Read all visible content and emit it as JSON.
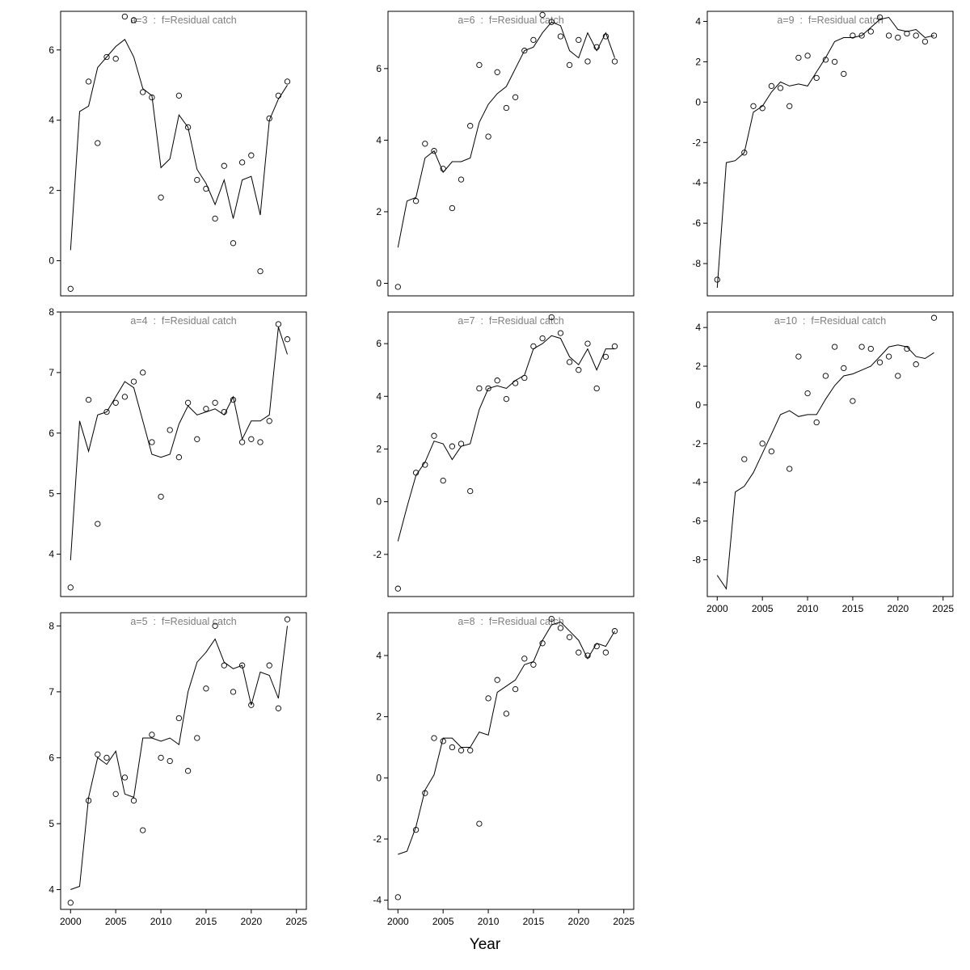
{
  "figure": {
    "xlabel": "Year",
    "colors": {
      "background": "#ffffff",
      "data": "#000000",
      "panel_title": "#7e7e7e"
    }
  },
  "chart_data": [
    {
      "type": "scatter",
      "title": "a=3  :  f=Residual catch",
      "xlim": [
        1998.9,
        2026.1
      ],
      "ylim": [
        -1.0,
        7.1
      ],
      "xticks": [
        2000,
        2005,
        2010,
        2015,
        2020,
        2025
      ],
      "yticks": [
        0,
        2,
        4,
        6
      ],
      "show_x_tick_labels": false,
      "points": [
        [
          2000,
          -0.8
        ],
        [
          2002,
          5.1
        ],
        [
          2003,
          3.35
        ],
        [
          2004,
          5.8
        ],
        [
          2005,
          5.75
        ],
        [
          2006,
          6.95
        ],
        [
          2007,
          6.85
        ],
        [
          2008,
          4.8
        ],
        [
          2009,
          4.65
        ],
        [
          2010,
          1.8
        ],
        [
          2012,
          4.7
        ],
        [
          2013,
          3.8
        ],
        [
          2014,
          2.3
        ],
        [
          2015,
          2.05
        ],
        [
          2016,
          1.2
        ],
        [
          2017,
          2.7
        ],
        [
          2018,
          0.5
        ],
        [
          2019,
          2.8
        ],
        [
          2020,
          3.0
        ],
        [
          2021,
          -0.3
        ],
        [
          2022,
          4.05
        ],
        [
          2023,
          4.7
        ],
        [
          2024,
          5.1
        ]
      ],
      "line_x_start": 2000,
      "line_y": [
        0.3,
        4.25,
        4.4,
        5.5,
        5.8,
        6.1,
        6.3,
        5.8,
        4.9,
        4.7,
        2.65,
        2.9,
        4.15,
        3.8,
        2.6,
        2.2,
        1.6,
        2.3,
        1.2,
        2.3,
        2.4,
        1.3,
        4.0,
        4.6,
        5.0
      ]
    },
    {
      "type": "scatter",
      "title": "a=4  :  f=Residual catch",
      "xlim": [
        1998.9,
        2026.1
      ],
      "ylim": [
        3.3,
        8.0
      ],
      "xticks": [
        2000,
        2005,
        2010,
        2015,
        2020,
        2025
      ],
      "yticks": [
        4,
        5,
        6,
        7,
        8
      ],
      "show_x_tick_labels": false,
      "points": [
        [
          2000,
          3.45
        ],
        [
          2002,
          6.55
        ],
        [
          2003,
          4.5
        ],
        [
          2004,
          6.35
        ],
        [
          2005,
          6.5
        ],
        [
          2006,
          6.6
        ],
        [
          2007,
          6.85
        ],
        [
          2008,
          7.0
        ],
        [
          2009,
          5.85
        ],
        [
          2010,
          4.95
        ],
        [
          2011,
          6.05
        ],
        [
          2012,
          5.6
        ],
        [
          2013,
          6.5
        ],
        [
          2014,
          5.9
        ],
        [
          2015,
          6.4
        ],
        [
          2016,
          6.5
        ],
        [
          2017,
          6.35
        ],
        [
          2018,
          6.55
        ],
        [
          2019,
          5.85
        ],
        [
          2020,
          5.9
        ],
        [
          2021,
          5.85
        ],
        [
          2022,
          6.2
        ],
        [
          2023,
          7.8
        ],
        [
          2024,
          7.55
        ]
      ],
      "line_x_start": 2000,
      "line_y": [
        3.9,
        6.2,
        5.7,
        6.3,
        6.35,
        6.6,
        6.85,
        6.75,
        6.2,
        5.65,
        5.6,
        5.65,
        6.15,
        6.45,
        6.3,
        6.35,
        6.4,
        6.3,
        6.6,
        5.9,
        6.2,
        6.2,
        6.3,
        7.75,
        7.3
      ]
    },
    {
      "type": "scatter",
      "title": "a=5  :  f=Residual catch",
      "xlim": [
        1998.9,
        2026.1
      ],
      "ylim": [
        3.7,
        8.2
      ],
      "xticks": [
        2000,
        2005,
        2010,
        2015,
        2020,
        2025
      ],
      "yticks": [
        4,
        5,
        6,
        7,
        8
      ],
      "show_x_tick_labels": true,
      "points": [
        [
          2000,
          3.8
        ],
        [
          2002,
          5.35
        ],
        [
          2003,
          6.05
        ],
        [
          2004,
          6.0
        ],
        [
          2005,
          5.45
        ],
        [
          2006,
          5.7
        ],
        [
          2007,
          5.35
        ],
        [
          2008,
          4.9
        ],
        [
          2009,
          6.35
        ],
        [
          2010,
          6.0
        ],
        [
          2011,
          5.95
        ],
        [
          2012,
          6.6
        ],
        [
          2013,
          5.8
        ],
        [
          2014,
          6.3
        ],
        [
          2015,
          7.05
        ],
        [
          2016,
          8.0
        ],
        [
          2017,
          7.4
        ],
        [
          2018,
          7.0
        ],
        [
          2019,
          7.4
        ],
        [
          2020,
          6.8
        ],
        [
          2022,
          7.4
        ],
        [
          2023,
          6.75
        ],
        [
          2024,
          8.1
        ]
      ],
      "line_x_start": 2000,
      "line_y": [
        4.0,
        4.05,
        5.4,
        6.0,
        5.9,
        6.1,
        5.45,
        5.4,
        6.3,
        6.3,
        6.25,
        6.3,
        6.2,
        7.0,
        7.45,
        7.6,
        7.8,
        7.45,
        7.35,
        7.4,
        6.8,
        7.3,
        7.25,
        6.9,
        8.0
      ]
    },
    {
      "type": "scatter",
      "title": "a=6  :  f=Residual catch",
      "xlim": [
        1998.9,
        2026.1
      ],
      "ylim": [
        -0.35,
        7.6
      ],
      "xticks": [
        2000,
        2005,
        2010,
        2015,
        2020,
        2025
      ],
      "yticks": [
        0,
        2,
        4,
        6
      ],
      "show_x_tick_labels": false,
      "points": [
        [
          2000,
          -0.1
        ],
        [
          2002,
          2.3
        ],
        [
          2003,
          3.9
        ],
        [
          2004,
          3.7
        ],
        [
          2005,
          3.2
        ],
        [
          2006,
          2.1
        ],
        [
          2007,
          2.9
        ],
        [
          2008,
          4.4
        ],
        [
          2009,
          6.1
        ],
        [
          2010,
          4.1
        ],
        [
          2011,
          5.9
        ],
        [
          2012,
          4.9
        ],
        [
          2013,
          5.2
        ],
        [
          2014,
          6.5
        ],
        [
          2015,
          6.8
        ],
        [
          2016,
          7.5
        ],
        [
          2017,
          7.3
        ],
        [
          2018,
          6.9
        ],
        [
          2019,
          6.1
        ],
        [
          2020,
          6.8
        ],
        [
          2021,
          6.2
        ],
        [
          2022,
          6.6
        ],
        [
          2023,
          6.9
        ],
        [
          2024,
          6.2
        ]
      ],
      "line_x_start": 2000,
      "line_y": [
        1.0,
        2.3,
        2.4,
        3.5,
        3.7,
        3.1,
        3.4,
        3.4,
        3.5,
        4.5,
        5.0,
        5.3,
        5.5,
        6.0,
        6.5,
        6.6,
        7.0,
        7.3,
        7.2,
        6.5,
        6.3,
        7.0,
        6.5,
        7.0,
        6.3
      ]
    },
    {
      "type": "scatter",
      "title": "a=7  :  f=Residual catch",
      "xlim": [
        1998.9,
        2026.1
      ],
      "ylim": [
        -3.6,
        7.2
      ],
      "xticks": [
        2000,
        2005,
        2010,
        2015,
        2020,
        2025
      ],
      "yticks": [
        -2,
        0,
        2,
        4,
        6
      ],
      "show_x_tick_labels": false,
      "points": [
        [
          2000,
          -3.3
        ],
        [
          2002,
          1.1
        ],
        [
          2003,
          1.4
        ],
        [
          2004,
          2.5
        ],
        [
          2005,
          0.8
        ],
        [
          2006,
          2.1
        ],
        [
          2007,
          2.2
        ],
        [
          2008,
          0.4
        ],
        [
          2009,
          4.3
        ],
        [
          2010,
          4.3
        ],
        [
          2011,
          4.6
        ],
        [
          2012,
          3.9
        ],
        [
          2013,
          4.5
        ],
        [
          2014,
          4.7
        ],
        [
          2015,
          5.9
        ],
        [
          2016,
          6.2
        ],
        [
          2017,
          7.0
        ],
        [
          2018,
          6.4
        ],
        [
          2019,
          5.3
        ],
        [
          2020,
          5.0
        ],
        [
          2021,
          6.0
        ],
        [
          2022,
          4.3
        ],
        [
          2023,
          5.5
        ],
        [
          2024,
          5.9
        ]
      ],
      "line_x_start": 2000,
      "line_y": [
        -1.5,
        -0.2,
        1.0,
        1.5,
        2.3,
        2.2,
        1.6,
        2.1,
        2.2,
        3.5,
        4.3,
        4.4,
        4.3,
        4.6,
        4.8,
        5.8,
        6.0,
        6.3,
        6.2,
        5.5,
        5.2,
        5.8,
        5.0,
        5.8,
        5.8
      ]
    },
    {
      "type": "scatter",
      "title": "a=8  :  f=Residual catch",
      "xlim": [
        1998.9,
        2026.1
      ],
      "ylim": [
        -4.3,
        5.4
      ],
      "xticks": [
        2000,
        2005,
        2010,
        2015,
        2020,
        2025
      ],
      "yticks": [
        -4,
        -2,
        0,
        2,
        4
      ],
      "show_x_tick_labels": true,
      "points": [
        [
          2000,
          -3.9
        ],
        [
          2002,
          -1.7
        ],
        [
          2003,
          -0.5
        ],
        [
          2004,
          1.3
        ],
        [
          2005,
          1.2
        ],
        [
          2006,
          1.0
        ],
        [
          2007,
          0.9
        ],
        [
          2008,
          0.9
        ],
        [
          2009,
          -1.5
        ],
        [
          2010,
          2.6
        ],
        [
          2011,
          3.2
        ],
        [
          2012,
          2.1
        ],
        [
          2013,
          2.9
        ],
        [
          2014,
          3.9
        ],
        [
          2015,
          3.7
        ],
        [
          2016,
          4.4
        ],
        [
          2017,
          5.2
        ],
        [
          2018,
          4.9
        ],
        [
          2019,
          4.6
        ],
        [
          2020,
          4.1
        ],
        [
          2021,
          4.0
        ],
        [
          2022,
          4.3
        ],
        [
          2023,
          4.1
        ],
        [
          2024,
          4.8
        ]
      ],
      "line_x_start": 2000,
      "line_y": [
        -2.5,
        -2.4,
        -1.6,
        -0.4,
        0.1,
        1.3,
        1.3,
        1.0,
        1.0,
        1.5,
        1.4,
        2.8,
        3.0,
        3.2,
        3.7,
        3.8,
        4.5,
        5.0,
        5.1,
        4.8,
        4.5,
        3.9,
        4.4,
        4.3,
        4.8
      ]
    },
    {
      "type": "scatter",
      "title": "a=9  :  f=Residual catch",
      "xlim": [
        1998.9,
        2026.1
      ],
      "ylim": [
        -9.6,
        4.5
      ],
      "xticks": [
        2000,
        2005,
        2010,
        2015,
        2020,
        2025
      ],
      "yticks": [
        -8,
        -6,
        -4,
        -2,
        0,
        2,
        4
      ],
      "show_x_tick_labels": false,
      "points": [
        [
          2000,
          -8.8
        ],
        [
          2003,
          -2.5
        ],
        [
          2004,
          -0.2
        ],
        [
          2005,
          -0.3
        ],
        [
          2006,
          0.8
        ],
        [
          2007,
          0.7
        ],
        [
          2008,
          -0.2
        ],
        [
          2009,
          2.2
        ],
        [
          2010,
          2.3
        ],
        [
          2011,
          1.2
        ],
        [
          2012,
          2.1
        ],
        [
          2013,
          2.0
        ],
        [
          2014,
          1.4
        ],
        [
          2015,
          3.3
        ],
        [
          2016,
          3.3
        ],
        [
          2017,
          3.5
        ],
        [
          2018,
          4.2
        ],
        [
          2019,
          3.3
        ],
        [
          2020,
          3.2
        ],
        [
          2021,
          3.4
        ],
        [
          2022,
          3.3
        ],
        [
          2023,
          3.0
        ],
        [
          2024,
          3.3
        ]
      ],
      "line_x_start": 2000,
      "line_y": [
        -9.2,
        -3.0,
        -2.9,
        -2.5,
        -0.5,
        -0.2,
        0.5,
        1.0,
        0.8,
        0.9,
        0.8,
        1.5,
        2.2,
        3.0,
        3.2,
        3.2,
        3.3,
        3.7,
        4.1,
        4.2,
        3.6,
        3.5,
        3.6,
        3.2,
        3.3
      ]
    },
    {
      "type": "scatter",
      "title": "a=10  :  f=Residual catch",
      "xlim": [
        1998.9,
        2026.1
      ],
      "ylim": [
        -9.9,
        4.8
      ],
      "xticks": [
        2000,
        2005,
        2010,
        2015,
        2020,
        2025
      ],
      "yticks": [
        -8,
        -6,
        -4,
        -2,
        0,
        2,
        4
      ],
      "show_x_tick_labels": true,
      "points": [
        [
          2003,
          -2.8
        ],
        [
          2005,
          -2.0
        ],
        [
          2006,
          -2.4
        ],
        [
          2008,
          -3.3
        ],
        [
          2009,
          2.5
        ],
        [
          2010,
          0.6
        ],
        [
          2011,
          -0.9
        ],
        [
          2012,
          1.5
        ],
        [
          2013,
          3.0
        ],
        [
          2014,
          1.9
        ],
        [
          2015,
          0.2
        ],
        [
          2016,
          3.0
        ],
        [
          2017,
          2.9
        ],
        [
          2018,
          2.2
        ],
        [
          2019,
          2.5
        ],
        [
          2020,
          1.5
        ],
        [
          2021,
          2.9
        ],
        [
          2022,
          2.1
        ],
        [
          2024,
          4.5
        ]
      ],
      "line_x_start": 2000,
      "line_y": [
        -8.8,
        -9.5,
        -4.5,
        -4.2,
        -3.5,
        -2.5,
        -1.5,
        -0.5,
        -0.3,
        -0.6,
        -0.5,
        -0.5,
        0.3,
        1.0,
        1.5,
        1.6,
        1.8,
        2.0,
        2.5,
        3.0,
        3.1,
        3.0,
        2.5,
        2.4,
        2.7
      ]
    }
  ]
}
